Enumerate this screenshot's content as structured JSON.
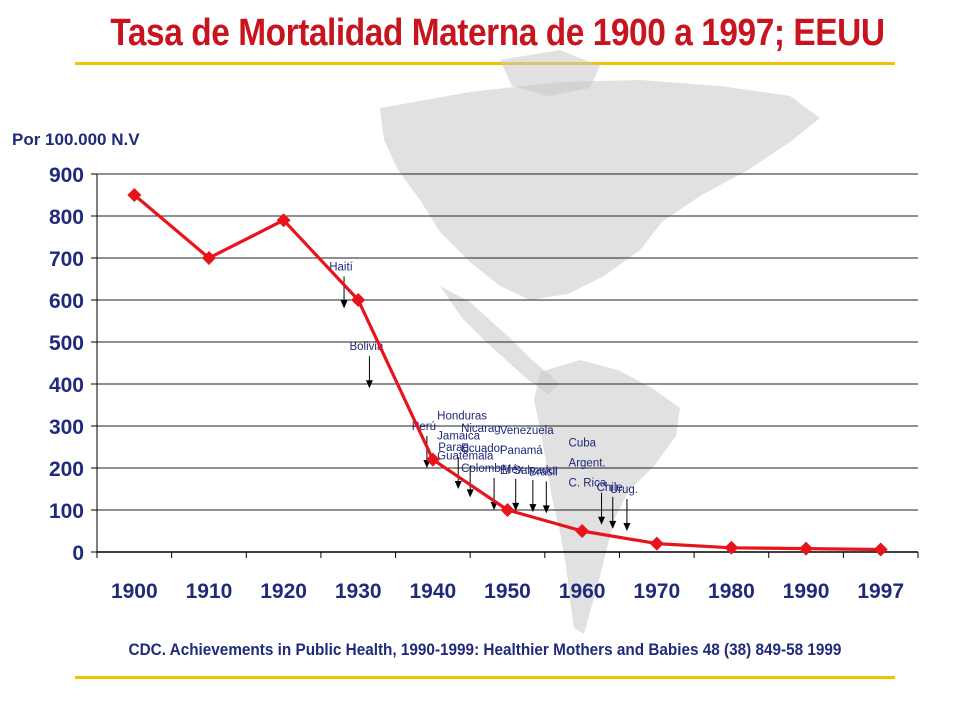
{
  "title": "Tasa de Mortalidad Materna de 1900 a 1997; EEUU",
  "source": "CDC.  Achievements in Public Health, 1990-1999: Healthier Mothers and Babies 48 (38) 849-58 1999",
  "colors": {
    "title": "#c8141e",
    "series": "#e8141c",
    "text": "#1f2a7a",
    "accent_rule": "#f2c200",
    "map": "#c8c8c8"
  },
  "chart_data": {
    "type": "line",
    "title": "Tasa de Mortalidad Materna de 1900 a 1997; EEUU",
    "ylabel": "Por 100.000 N.V",
    "xlabel": "",
    "categories": [
      "1900",
      "1910",
      "1920",
      "1930",
      "1940",
      "1950",
      "1960",
      "1970",
      "1980",
      "1990",
      "1997"
    ],
    "series": [
      {
        "values": [
          850,
          700,
          790,
          600,
          220,
          100,
          50,
          20,
          10,
          8,
          6
        ]
      }
    ],
    "ylim": [
      0,
      900
    ],
    "yticks": [
      0,
      100,
      200,
      300,
      400,
      500,
      600,
      700,
      800,
      900
    ],
    "grid": true,
    "annotations": [
      {
        "lines": [
          "Haití"
        ],
        "value": 580,
        "pos": 3.31
      },
      {
        "lines": [
          "Bolivia"
        ],
        "value": 390,
        "pos": 3.65
      },
      {
        "lines": [
          "Perú"
        ],
        "value": 200,
        "pos": 4.42
      },
      {
        "lines": [
          "Honduras",
          "Jamaica",
          "Guatemala"
        ],
        "value": 130,
        "pos": 5.0
      },
      {
        "lines": [
          "Parag."
        ],
        "value": 150,
        "pos": 4.84
      },
      {
        "lines": [
          "Nicarag",
          "Ecuador",
          "Colomb"
        ],
        "value": 100,
        "pos": 5.32
      },
      {
        "lines": [
          "Venezuela",
          "Panamá",
          "El Salvador"
        ],
        "value": 95,
        "pos": 5.84
      },
      {
        "lines": [
          "Méx"
        ],
        "value": 98,
        "pos": 5.61
      },
      {
        "lines": [
          "Brasil"
        ],
        "value": 92,
        "pos": 6.02
      },
      {
        "lines": [
          "Cuba",
          "Argent.",
          "C. Rica"
        ],
        "value": 65,
        "pos": 6.76
      },
      {
        "lines": [
          "Chile"
        ],
        "value": 55,
        "pos": 6.91
      },
      {
        "lines": [
          "Urug."
        ],
        "value": 50,
        "pos": 7.1
      }
    ]
  }
}
